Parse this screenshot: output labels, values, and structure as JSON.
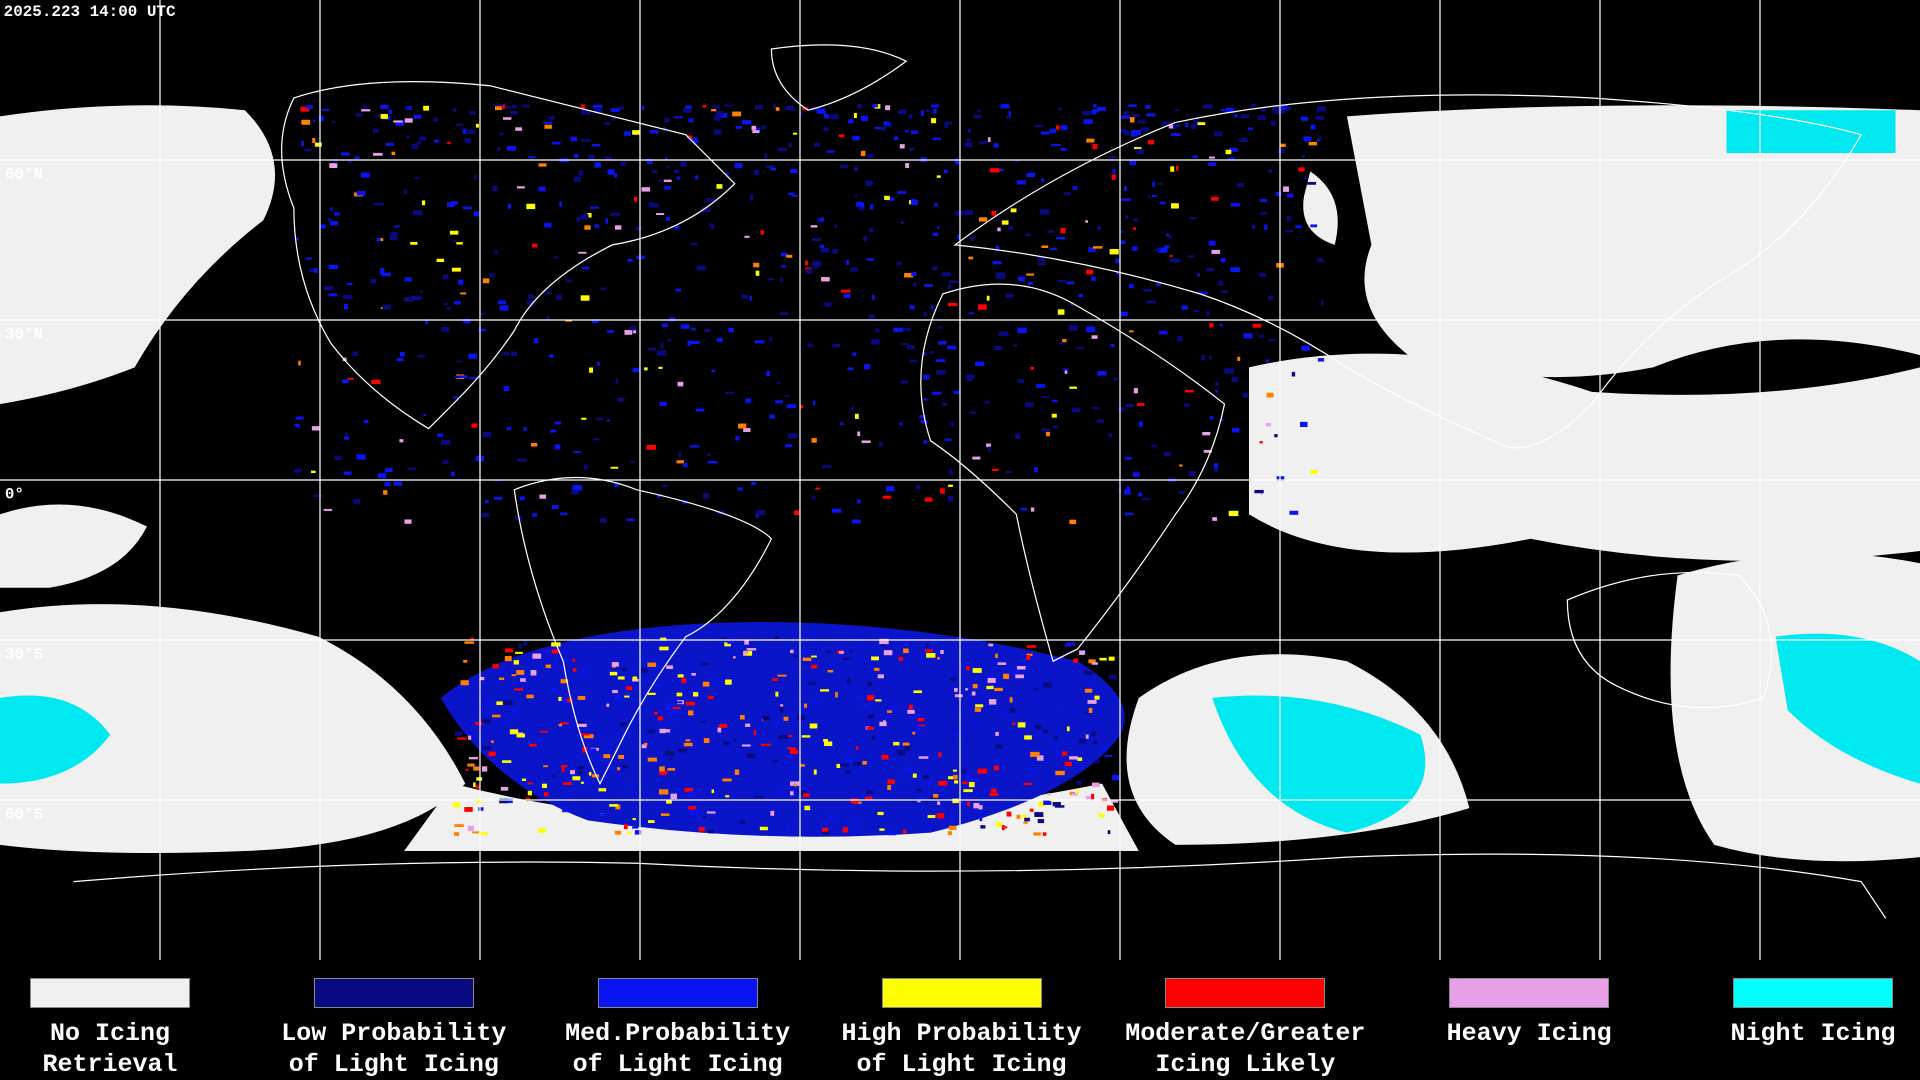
{
  "header": {
    "timestamp": "2025.223 14:00 UTC"
  },
  "map": {
    "latitude_labels": [
      "60°N",
      "30°N",
      "0°",
      "30°S",
      "60°S"
    ]
  },
  "legend": {
    "items": [
      {
        "label_lines": [
          "No Icing",
          "Retrieval"
        ],
        "color": "#f0f0f0"
      },
      {
        "label_lines": [
          "Low Probability",
          "of Light Icing"
        ],
        "color": "#0a0a80"
      },
      {
        "label_lines": [
          "Med.Probability",
          "of Light Icing"
        ],
        "color": "#0a14f0"
      },
      {
        "label_lines": [
          "High Probability",
          "of Light Icing"
        ],
        "color": "#ffff00"
      },
      {
        "label_lines": [
          "Moderate/Greater",
          "Icing Likely"
        ],
        "color": "#ff0000"
      },
      {
        "label_lines": [
          "Heavy Icing"
        ],
        "color": "#e8a0e8"
      },
      {
        "label_lines": [
          "Night Icing"
        ],
        "color": "#00ffff"
      }
    ]
  }
}
